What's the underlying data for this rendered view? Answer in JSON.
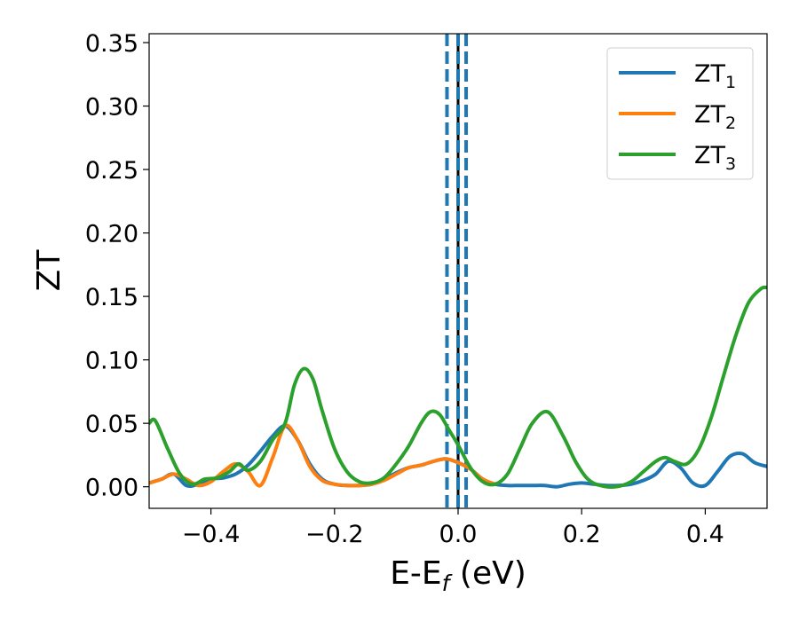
{
  "chart_data": {
    "type": "line",
    "title": "",
    "xlabel": "E-E",
    "xlabel_sub": "f",
    "xlabel_unit": " (eV)",
    "ylabel": "ZT",
    "xlim": [
      -0.5,
      0.5
    ],
    "ylim": [
      -0.017,
      0.357
    ],
    "x_ticks": [
      -0.4,
      -0.2,
      0.0,
      0.2,
      0.4
    ],
    "x_tick_labels": [
      "−0.4",
      "−0.2",
      "0.0",
      "0.2",
      "0.4"
    ],
    "y_ticks": [
      0.0,
      0.05,
      0.1,
      0.15,
      0.2,
      0.25,
      0.3,
      0.35
    ],
    "y_tick_labels": [
      "0.00",
      "0.05",
      "0.10",
      "0.15",
      "0.20",
      "0.25",
      "0.30",
      "0.35"
    ],
    "grid": false,
    "legend_position": "top-right",
    "vertical_lines": [
      {
        "x": 0.0,
        "style": "solid",
        "color": "#000000"
      },
      {
        "x": -0.018,
        "style": "dashed",
        "color": "#1f77b4"
      },
      {
        "x": 0.0,
        "style": "dashed",
        "color": "#1f77b4"
      },
      {
        "x": 0.013,
        "style": "dashed",
        "color": "#1f77b4"
      }
    ],
    "series": [
      {
        "name": "ZT",
        "name_sub": "1",
        "color": "#1f77b4",
        "x": [
          -0.5,
          -0.48,
          -0.46,
          -0.44,
          -0.42,
          -0.4,
          -0.38,
          -0.36,
          -0.34,
          -0.32,
          -0.3,
          -0.28,
          -0.26,
          -0.24,
          -0.22,
          -0.2,
          -0.18,
          -0.16,
          -0.14,
          -0.12,
          -0.1,
          -0.08,
          -0.06,
          -0.04,
          -0.02,
          0.0,
          0.02,
          0.04,
          0.06,
          0.08,
          0.1,
          0.12,
          0.14,
          0.16,
          0.18,
          0.2,
          0.22,
          0.24,
          0.26,
          0.28,
          0.3,
          0.32,
          0.34,
          0.36,
          0.38,
          0.4,
          0.42,
          0.44,
          0.46,
          0.48,
          0.5
        ],
        "y": [
          0.003,
          0.006,
          0.01,
          0.001,
          0.002,
          0.006,
          0.007,
          0.01,
          0.017,
          0.028,
          0.04,
          0.048,
          0.037,
          0.018,
          0.006,
          0.002,
          0.001,
          0.001,
          0.002,
          0.006,
          0.011,
          0.015,
          0.017,
          0.02,
          0.022,
          0.019,
          0.014,
          0.006,
          0.002,
          0.001,
          0.001,
          0.001,
          0.001,
          0.0,
          0.002,
          0.003,
          0.002,
          0.001,
          0.001,
          0.002,
          0.005,
          0.01,
          0.02,
          0.015,
          0.003,
          0.001,
          0.012,
          0.024,
          0.026,
          0.019,
          0.016
        ]
      },
      {
        "name": "ZT",
        "name_sub": "2",
        "color": "#ff7f0e",
        "x": [
          -0.5,
          -0.48,
          -0.46,
          -0.44,
          -0.42,
          -0.4,
          -0.38,
          -0.36,
          -0.34,
          -0.32,
          -0.3,
          -0.28,
          -0.26,
          -0.24,
          -0.22,
          -0.2,
          -0.18,
          -0.16,
          -0.14,
          -0.12,
          -0.1,
          -0.08,
          -0.06,
          -0.04,
          -0.02,
          0.0,
          0.02,
          0.04,
          0.06
        ],
        "y": [
          0.003,
          0.006,
          0.01,
          0.006,
          0.001,
          0.004,
          0.012,
          0.018,
          0.012,
          0.001,
          0.023,
          0.048,
          0.037,
          0.016,
          0.005,
          0.002,
          0.001,
          0.001,
          0.002,
          0.005,
          0.01,
          0.015,
          0.017,
          0.02,
          0.022,
          0.019,
          0.014,
          0.006,
          0.002
        ]
      },
      {
        "name": "ZT",
        "name_sub": "3",
        "color": "#2ca02c",
        "x": [
          -0.5,
          -0.49,
          -0.47,
          -0.45,
          -0.43,
          -0.41,
          -0.39,
          -0.37,
          -0.355,
          -0.34,
          -0.32,
          -0.3,
          -0.28,
          -0.265,
          -0.25,
          -0.235,
          -0.22,
          -0.2,
          -0.18,
          -0.16,
          -0.14,
          -0.12,
          -0.1,
          -0.08,
          -0.06,
          -0.045,
          -0.03,
          -0.015,
          0.0,
          0.02,
          0.04,
          0.06,
          0.08,
          0.1,
          0.12,
          0.145,
          0.17,
          0.19,
          0.21,
          0.23,
          0.255,
          0.28,
          0.3,
          0.32,
          0.335,
          0.35,
          0.37,
          0.39,
          0.41,
          0.43,
          0.45,
          0.47,
          0.49,
          0.5
        ],
        "y": [
          0.05,
          0.052,
          0.03,
          0.01,
          0.002,
          0.006,
          0.007,
          0.012,
          0.018,
          0.013,
          0.02,
          0.037,
          0.05,
          0.08,
          0.093,
          0.085,
          0.06,
          0.03,
          0.012,
          0.004,
          0.003,
          0.007,
          0.018,
          0.032,
          0.05,
          0.059,
          0.057,
          0.045,
          0.033,
          0.015,
          0.004,
          0.002,
          0.01,
          0.03,
          0.05,
          0.059,
          0.04,
          0.02,
          0.006,
          0.001,
          0.0,
          0.004,
          0.012,
          0.02,
          0.023,
          0.02,
          0.018,
          0.03,
          0.055,
          0.088,
          0.12,
          0.145,
          0.156,
          0.157
        ]
      }
    ]
  }
}
